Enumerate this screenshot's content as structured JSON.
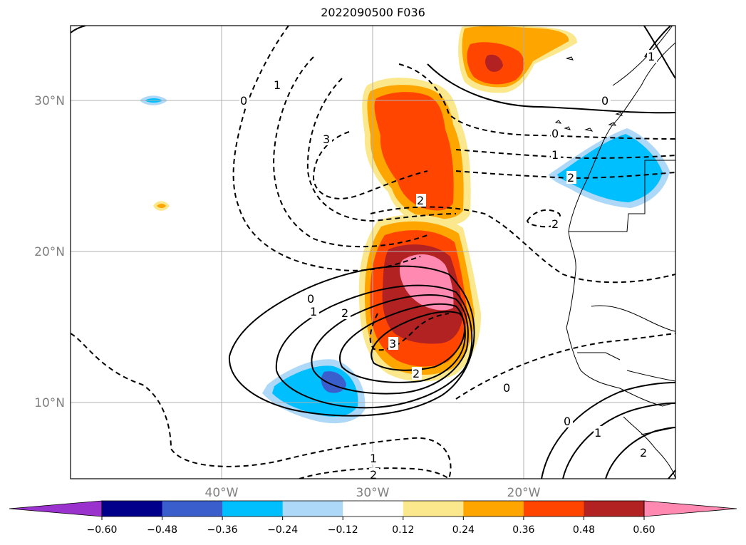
{
  "title": "2022090500 F036",
  "map": {
    "lat_labels": [
      "30°N",
      "20°N",
      "10°N"
    ],
    "lon_labels": [
      "40°W",
      "30°W",
      "20°W"
    ]
  },
  "colorbar": {
    "tick_labels": [
      "−0.60",
      "−0.48",
      "−0.36",
      "−0.24",
      "−0.12",
      "0.12",
      "0.24",
      "0.36",
      "0.48",
      "0.60"
    ],
    "colors": [
      "#9a32cd",
      "#00008b",
      "#3a5fcd",
      "#00bfff",
      "#add8f7",
      "#ffffff",
      "#fbe88c",
      "#ffa500",
      "#ff4500",
      "#b22222",
      "#ff89b0"
    ],
    "extend": "both"
  },
  "contour_labels": {
    "solid": [
      "0",
      "1",
      "2",
      "3",
      "0",
      "1",
      "2",
      "1",
      "0",
      "1",
      "2",
      "0",
      "1"
    ],
    "dashed": [
      "1",
      "0",
      "3",
      "2",
      "2",
      "2",
      "2",
      "3",
      "2",
      "0",
      "2"
    ]
  }
}
